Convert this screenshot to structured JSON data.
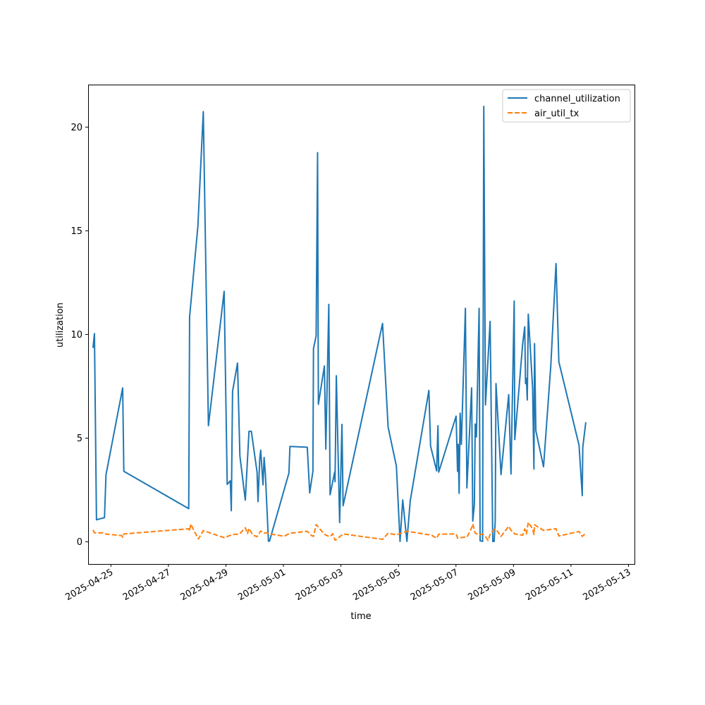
{
  "chart_data": {
    "type": "line",
    "xlabel": "time",
    "ylabel": "utilization",
    "x_axis_type": "date",
    "xlim": [
      "2025-04-24T05:00",
      "2025-05-13T05:00"
    ],
    "ylim": [
      -1.07,
      22.05
    ],
    "yticks": [
      0,
      5,
      10,
      15,
      20
    ],
    "xticks": [
      "2025-04-25",
      "2025-04-27",
      "2025-04-29",
      "2025-05-01",
      "2025-05-03",
      "2025-05-05",
      "2025-05-07",
      "2025-05-09",
      "2025-05-11",
      "2025-05-13"
    ],
    "grid": false,
    "legend": {
      "placement": "top-right"
    },
    "series": [
      {
        "name": "channel_utilization",
        "color": "#1f77b4",
        "style": "solid",
        "points": [
          [
            "2025-04-24T09:04",
            9.35
          ],
          [
            "2025-04-24T10:17",
            10.04
          ],
          [
            "2025-04-24T11:58",
            1.06
          ],
          [
            "2025-04-24T18:40",
            1.17
          ],
          [
            "2025-04-24T19:54",
            3.23
          ],
          [
            "2025-04-25T09:50",
            7.42
          ],
          [
            "2025-04-25T10:48",
            3.4
          ],
          [
            "2025-04-27T16:58",
            1.6
          ],
          [
            "2025-04-27T17:41",
            10.85
          ],
          [
            "2025-04-27T18:14",
            11.19
          ],
          [
            "2025-04-28T00:36",
            15.22
          ],
          [
            "2025-04-28T05:07",
            20.75
          ],
          [
            "2025-04-28T09:24",
            5.6
          ],
          [
            "2025-04-28T22:31",
            12.08
          ],
          [
            "2025-04-29T01:05",
            2.77
          ],
          [
            "2025-04-29T03:39",
            2.94
          ],
          [
            "2025-04-29T04:30",
            1.5
          ],
          [
            "2025-04-29T05:32",
            7.25
          ],
          [
            "2025-04-29T09:41",
            8.62
          ],
          [
            "2025-04-29T11:40",
            4.14
          ],
          [
            "2025-04-29T16:11",
            2.01
          ],
          [
            "2025-04-29T19:16",
            5.33
          ],
          [
            "2025-04-29T21:13",
            5.33
          ],
          [
            "2025-04-30T02:00",
            3.36
          ],
          [
            "2025-04-30T02:48",
            1.94
          ],
          [
            "2025-04-30T04:13",
            3.98
          ],
          [
            "2025-04-30T05:01",
            4.42
          ],
          [
            "2025-04-30T06:57",
            2.75
          ],
          [
            "2025-04-30T07:52",
            4.07
          ],
          [
            "2025-04-30T08:57",
            3.24
          ],
          [
            "2025-04-30T11:30",
            0.03
          ],
          [
            "2025-04-30T12:21",
            0.03
          ],
          [
            "2025-05-01T04:36",
            3.32
          ],
          [
            "2025-05-01T05:26",
            4.6
          ],
          [
            "2025-05-01T19:54",
            4.56
          ],
          [
            "2025-05-01T21:55",
            2.36
          ],
          [
            "2025-05-02T00:36",
            3.4
          ],
          [
            "2025-05-02T01:05",
            9.32
          ],
          [
            "2025-05-02T03:17",
            9.93
          ],
          [
            "2025-05-02T04:30",
            18.77
          ],
          [
            "2025-05-02T05:10",
            6.63
          ],
          [
            "2025-05-02T10:11",
            8.48
          ],
          [
            "2025-05-02T11:22",
            4.47
          ],
          [
            "2025-05-02T13:52",
            11.45
          ],
          [
            "2025-05-02T14:55",
            2.27
          ],
          [
            "2025-05-02T18:47",
            3.37
          ],
          [
            "2025-05-02T19:04",
            2.9
          ],
          [
            "2025-05-02T20:09",
            8.01
          ],
          [
            "2025-05-02T22:55",
            0.93
          ],
          [
            "2025-05-03T00:51",
            5.66
          ],
          [
            "2025-05-03T01:48",
            1.74
          ],
          [
            "2025-05-04T10:43",
            10.53
          ],
          [
            "2025-05-04T15:22",
            5.53
          ],
          [
            "2025-05-04T22:17",
            3.65
          ],
          [
            "2025-05-05T01:19",
            0.02
          ],
          [
            "2025-05-05T03:34",
            2.02
          ],
          [
            "2025-05-05T07:03",
            0.02
          ],
          [
            "2025-05-05T09:50",
            1.98
          ],
          [
            "2025-05-06T01:23",
            7.3
          ],
          [
            "2025-05-06T02:48",
            4.62
          ],
          [
            "2025-05-06T07:52",
            3.42
          ],
          [
            "2025-05-06T08:57",
            5.6
          ],
          [
            "2025-05-06T09:36",
            3.36
          ],
          [
            "2025-05-07T00:07",
            6.06
          ],
          [
            "2025-05-07T01:19",
            3.4
          ],
          [
            "2025-05-07T01:51",
            4.7
          ],
          [
            "2025-05-07T02:38",
            2.34
          ],
          [
            "2025-05-07T03:29",
            6.2
          ],
          [
            "2025-05-07T04:30",
            4.7
          ],
          [
            "2025-05-07T07:52",
            11.26
          ],
          [
            "2025-05-07T09:07",
            2.6
          ],
          [
            "2025-05-07T13:04",
            7.42
          ],
          [
            "2025-05-07T14:02",
            1.0
          ],
          [
            "2025-05-07T15:22",
            1.82
          ],
          [
            "2025-05-07T16:04",
            5.68
          ],
          [
            "2025-05-07T17:04",
            5.06
          ],
          [
            "2025-05-07T19:19",
            11.26
          ],
          [
            "2025-05-07T20:09",
            0.05
          ],
          [
            "2025-05-07T22:13",
            0.02
          ],
          [
            "2025-05-07T23:13",
            21.0
          ],
          [
            "2025-05-08T00:36",
            6.6
          ],
          [
            "2025-05-08T04:30",
            10.63
          ],
          [
            "2025-05-08T06:43",
            0.02
          ],
          [
            "2025-05-08T07:52",
            0.02
          ],
          [
            "2025-05-08T08:45",
            1.0
          ],
          [
            "2025-05-08T09:24",
            7.63
          ],
          [
            "2025-05-08T13:35",
            3.24
          ],
          [
            "2025-05-08T20:00",
            7.1
          ],
          [
            "2025-05-08T21:55",
            3.27
          ],
          [
            "2025-05-09T00:36",
            11.61
          ],
          [
            "2025-05-09T01:05",
            4.93
          ],
          [
            "2025-05-09T07:44",
            9.59
          ],
          [
            "2025-05-09T09:24",
            10.37
          ],
          [
            "2025-05-09T10:04",
            7.63
          ],
          [
            "2025-05-09T10:48",
            7.88
          ],
          [
            "2025-05-09T11:30",
            6.84
          ],
          [
            "2025-05-09T12:21",
            10.98
          ],
          [
            "2025-05-09T15:58",
            7.42
          ],
          [
            "2025-05-09T17:04",
            3.51
          ],
          [
            "2025-05-09T17:35",
            9.56
          ],
          [
            "2025-05-09T18:40",
            5.36
          ],
          [
            "2025-05-10T01:05",
            3.62
          ],
          [
            "2025-05-10T07:08",
            8.48
          ],
          [
            "2025-05-10T11:30",
            13.42
          ],
          [
            "2025-05-10T13:52",
            8.68
          ],
          [
            "2025-05-11T06:43",
            4.66
          ],
          [
            "2025-05-11T09:24",
            2.23
          ],
          [
            "2025-05-11T09:50",
            4.56
          ],
          [
            "2025-05-11T12:21",
            5.77
          ]
        ]
      },
      {
        "name": "air_util_tx",
        "color": "#ff7f0e",
        "style": "dashed",
        "points": [
          [
            "2025-04-24T09:04",
            0.57
          ],
          [
            "2025-04-24T10:17",
            0.43
          ],
          [
            "2025-04-24T18:40",
            0.43
          ],
          [
            "2025-04-24T19:54",
            0.37
          ],
          [
            "2025-04-25T09:07",
            0.3
          ],
          [
            "2025-04-25T09:50",
            0.22
          ],
          [
            "2025-04-25T10:48",
            0.38
          ],
          [
            "2025-04-27T16:58",
            0.63
          ],
          [
            "2025-04-27T17:41",
            0.52
          ],
          [
            "2025-04-27T18:40",
            0.86
          ],
          [
            "2025-04-27T21:55",
            0.47
          ],
          [
            "2025-04-28T01:05",
            0.14
          ],
          [
            "2025-04-28T05:07",
            0.54
          ],
          [
            "2025-04-28T22:31",
            0.2
          ],
          [
            "2025-04-29T05:32",
            0.35
          ],
          [
            "2025-04-29T11:40",
            0.38
          ],
          [
            "2025-04-29T12:40",
            0.46
          ],
          [
            "2025-04-29T16:11",
            0.68
          ],
          [
            "2025-04-29T18:01",
            0.4
          ],
          [
            "2025-04-29T19:16",
            0.65
          ],
          [
            "2025-04-29T22:31",
            0.32
          ],
          [
            "2025-04-30T02:00",
            0.25
          ],
          [
            "2025-04-30T05:01",
            0.52
          ],
          [
            "2025-04-30T07:52",
            0.42
          ],
          [
            "2025-04-30T10:11",
            0.44
          ],
          [
            "2025-04-30T12:21",
            0.38
          ],
          [
            "2025-05-01T00:36",
            0.27
          ],
          [
            "2025-05-01T05:26",
            0.41
          ],
          [
            "2025-05-01T19:54",
            0.51
          ],
          [
            "2025-05-01T23:13",
            0.31
          ],
          [
            "2025-05-02T01:05",
            0.26
          ],
          [
            "2025-05-02T03:17",
            0.83
          ],
          [
            "2025-05-02T04:30",
            0.75
          ],
          [
            "2025-05-02T10:11",
            0.36
          ],
          [
            "2025-05-02T13:52",
            0.26
          ],
          [
            "2025-05-02T15:22",
            0.27
          ],
          [
            "2025-05-02T17:04",
            0.39
          ],
          [
            "2025-05-02T19:04",
            0.08
          ],
          [
            "2025-05-02T20:09",
            0.11
          ],
          [
            "2025-05-03T01:48",
            0.38
          ],
          [
            "2025-05-04T10:43",
            0.12
          ],
          [
            "2025-05-04T15:22",
            0.41
          ],
          [
            "2025-05-04T22:17",
            0.34
          ],
          [
            "2025-05-05T07:03",
            0.51
          ],
          [
            "2025-05-06T01:23",
            0.34
          ],
          [
            "2025-05-06T02:48",
            0.35
          ],
          [
            "2025-05-06T07:52",
            0.17
          ],
          [
            "2025-05-06T09:36",
            0.37
          ],
          [
            "2025-05-07T00:07",
            0.38
          ],
          [
            "2025-05-07T01:19",
            0.18
          ],
          [
            "2025-05-07T07:52",
            0.23
          ],
          [
            "2025-05-07T09:07",
            0.22
          ],
          [
            "2025-05-07T13:04",
            0.67
          ],
          [
            "2025-05-07T14:02",
            0.86
          ],
          [
            "2025-05-07T16:04",
            0.42
          ],
          [
            "2025-05-07T19:19",
            0.33
          ],
          [
            "2025-05-07T22:13",
            0.38
          ],
          [
            "2025-05-08T00:36",
            0.26
          ],
          [
            "2025-05-08T02:48",
            0.06
          ],
          [
            "2025-05-08T04:30",
            0.36
          ],
          [
            "2025-05-08T07:52",
            0.61
          ],
          [
            "2025-05-08T09:24",
            0.6
          ],
          [
            "2025-05-08T13:35",
            0.26
          ],
          [
            "2025-05-08T20:00",
            0.75
          ],
          [
            "2025-05-08T21:55",
            0.56
          ],
          [
            "2025-05-09T01:05",
            0.38
          ],
          [
            "2025-05-09T07:44",
            0.32
          ],
          [
            "2025-05-09T09:24",
            0.62
          ],
          [
            "2025-05-09T10:48",
            0.38
          ],
          [
            "2025-05-09T12:21",
            0.94
          ],
          [
            "2025-05-09T15:58",
            0.62
          ],
          [
            "2025-05-09T17:04",
            0.35
          ],
          [
            "2025-05-09T17:35",
            0.82
          ],
          [
            "2025-05-10T01:05",
            0.55
          ],
          [
            "2025-05-10T07:08",
            0.6
          ],
          [
            "2025-05-10T11:30",
            0.63
          ],
          [
            "2025-05-10T13:52",
            0.28
          ],
          [
            "2025-05-11T06:43",
            0.5
          ],
          [
            "2025-05-11T09:24",
            0.26
          ],
          [
            "2025-05-11T12:21",
            0.41
          ]
        ]
      }
    ]
  }
}
